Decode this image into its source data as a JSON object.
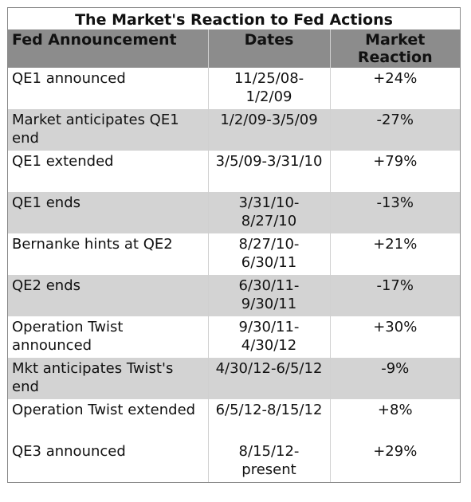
{
  "table": {
    "title": "The Market's Reaction to Fed Actions",
    "headers": {
      "announcement": "Fed Announcement",
      "dates": "Dates",
      "reaction": "Market Reaction"
    },
    "rows": [
      {
        "announcement": "QE1 announced",
        "dates": "11/25/08-1/2/09",
        "reaction": "+24%"
      },
      {
        "announcement": "Market anticipates QE1 end",
        "dates": "1/2/09-3/5/09",
        "reaction": "-27%"
      },
      {
        "announcement": "QE1 extended",
        "dates": "3/5/09-3/31/10",
        "reaction": "+79%"
      },
      {
        "announcement": "QE1 ends",
        "dates": "3/31/10-8/27/10",
        "reaction": "-13%"
      },
      {
        "announcement": "Bernanke hints at QE2",
        "dates": "8/27/10-6/30/11",
        "reaction": "+21%"
      },
      {
        "announcement": "QE2 ends",
        "dates": "6/30/11-9/30/11",
        "reaction": "-17%"
      },
      {
        "announcement": "Operation Twist announced",
        "dates": "9/30/11-4/30/12",
        "reaction": "+30%"
      },
      {
        "announcement": "Mkt anticipates Twist's end",
        "dates": "4/30/12-6/5/12",
        "reaction": "-9%"
      },
      {
        "announcement": "Operation Twist extended",
        "dates": "6/5/12-8/15/12",
        "reaction": "+8%"
      },
      {
        "announcement": "QE3 announced",
        "dates": "8/15/12-present",
        "reaction": "+29%"
      }
    ]
  }
}
